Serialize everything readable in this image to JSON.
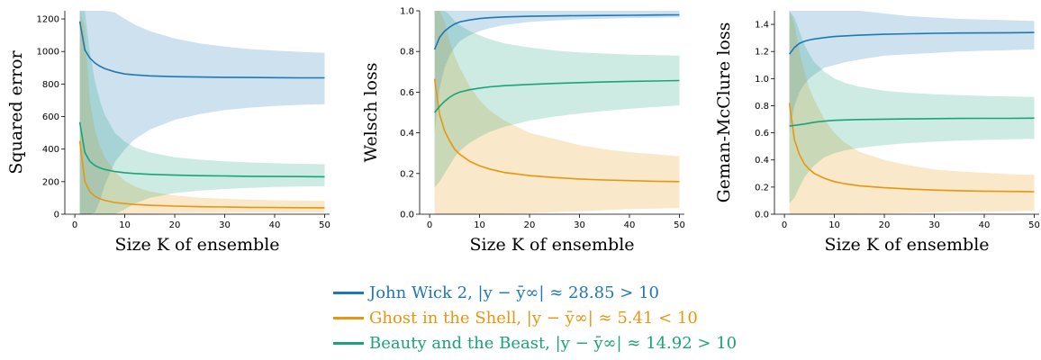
{
  "colors": {
    "john_wick": "#1f77b4",
    "ghost": "#e8960f",
    "beauty": "#1aa37a"
  },
  "chart_data": [
    {
      "type": "line",
      "xlabel": "Size K of ensemble",
      "ylabel": "Squared error",
      "xlim": [
        -2,
        51
      ],
      "ylim": [
        0,
        1250
      ],
      "xticks": [
        "0",
        "10",
        "20",
        "30",
        "40",
        "50"
      ],
      "yticks": [
        "0",
        "200",
        "400",
        "600",
        "800",
        "1000",
        "1200"
      ],
      "grid": false,
      "x": [
        1,
        2,
        3,
        4,
        5,
        6,
        8,
        10,
        12,
        15,
        20,
        25,
        30,
        35,
        40,
        45,
        50
      ],
      "series": [
        {
          "key": "john_wick",
          "values": [
            1185,
            1010,
            960,
            930,
            910,
            895,
            875,
            862,
            856,
            850,
            845,
            843,
            841,
            840,
            839,
            838,
            838
          ],
          "band_upper": [
            1250,
            1250,
            1250,
            1250,
            1250,
            1250,
            1240,
            1200,
            1165,
            1125,
            1080,
            1050,
            1030,
            1015,
            1005,
            998,
            992
          ],
          "band_lower": [
            0,
            0,
            0,
            10,
            80,
            180,
            320,
            400,
            460,
            520,
            580,
            615,
            640,
            655,
            665,
            672,
            676
          ]
        },
        {
          "key": "ghost",
          "values": [
            450,
            200,
            140,
            110,
            95,
            85,
            72,
            65,
            60,
            55,
            50,
            46,
            44,
            42,
            41,
            40,
            39
          ],
          "band_upper": [
            1250,
            1150,
            700,
            520,
            420,
            350,
            260,
            205,
            170,
            140,
            115,
            102,
            95,
            90,
            86,
            84,
            82
          ],
          "band_lower": [
            0,
            0,
            0,
            0,
            0,
            0,
            0,
            0,
            0,
            2,
            6,
            8,
            9,
            10,
            10,
            10,
            10
          ]
        },
        {
          "key": "beauty",
          "values": [
            565,
            380,
            325,
            300,
            285,
            275,
            262,
            255,
            250,
            245,
            240,
            237,
            235,
            233,
            232,
            231,
            230
          ],
          "band_upper": [
            1250,
            1250,
            1000,
            820,
            700,
            610,
            500,
            445,
            410,
            380,
            350,
            335,
            325,
            318,
            313,
            310,
            307
          ],
          "band_lower": [
            0,
            0,
            0,
            0,
            0,
            0,
            0,
            30,
            65,
            100,
            130,
            145,
            155,
            162,
            167,
            170,
            172
          ]
        }
      ]
    },
    {
      "type": "line",
      "xlabel": "Size K of ensemble",
      "ylabel": "Welsch loss",
      "xlim": [
        -2,
        51
      ],
      "ylim": [
        0,
        1.0
      ],
      "xticks": [
        "0",
        "10",
        "20",
        "30",
        "40",
        "50"
      ],
      "yticks": [
        "0.0",
        "0.2",
        "0.4",
        "0.6",
        "0.8",
        "1.0"
      ],
      "grid": false,
      "x": [
        1,
        2,
        3,
        4,
        5,
        6,
        8,
        10,
        12,
        15,
        20,
        25,
        30,
        35,
        40,
        45,
        50
      ],
      "series": [
        {
          "key": "john_wick",
          "values": [
            0.81,
            0.87,
            0.9,
            0.92,
            0.935,
            0.945,
            0.955,
            0.962,
            0.966,
            0.97,
            0.973,
            0.975,
            0.976,
            0.977,
            0.978,
            0.979,
            0.98
          ],
          "band_upper": [
            1.0,
            1.0,
            1.0,
            1.0,
            1.0,
            1.0,
            1.0,
            1.0,
            1.0,
            1.0,
            1.0,
            1.0,
            1.0,
            1.0,
            1.0,
            1.0,
            1.0
          ],
          "band_lower": [
            0.4,
            0.62,
            0.72,
            0.78,
            0.82,
            0.85,
            0.88,
            0.9,
            0.915,
            0.93,
            0.945,
            0.952,
            0.958,
            0.961,
            0.964,
            0.966,
            0.968
          ]
        },
        {
          "key": "ghost",
          "values": [
            0.665,
            0.49,
            0.41,
            0.36,
            0.32,
            0.295,
            0.26,
            0.238,
            0.222,
            0.205,
            0.19,
            0.18,
            0.173,
            0.168,
            0.165,
            0.162,
            0.16
          ],
          "band_upper": [
            1.0,
            1.0,
            0.95,
            0.85,
            0.78,
            0.72,
            0.63,
            0.56,
            0.51,
            0.46,
            0.4,
            0.37,
            0.34,
            0.32,
            0.305,
            0.295,
            0.285
          ],
          "band_lower": [
            0.0,
            0.0,
            0.0,
            0.0,
            0.0,
            0.0,
            0.0,
            0.0,
            0.0,
            0.0,
            0.005,
            0.01,
            0.015,
            0.02,
            0.025,
            0.028,
            0.03
          ]
        },
        {
          "key": "beauty",
          "values": [
            0.5,
            0.53,
            0.555,
            0.575,
            0.59,
            0.6,
            0.612,
            0.62,
            0.626,
            0.632,
            0.638,
            0.643,
            0.647,
            0.65,
            0.653,
            0.655,
            0.657
          ],
          "band_upper": [
            1.0,
            1.0,
            1.0,
            0.98,
            0.95,
            0.93,
            0.9,
            0.88,
            0.86,
            0.84,
            0.82,
            0.805,
            0.795,
            0.79,
            0.785,
            0.782,
            0.78
          ],
          "band_lower": [
            0.13,
            0.16,
            0.2,
            0.24,
            0.28,
            0.31,
            0.35,
            0.38,
            0.405,
            0.43,
            0.46,
            0.48,
            0.495,
            0.508,
            0.518,
            0.527,
            0.535
          ]
        }
      ]
    },
    {
      "type": "line",
      "xlabel": "Size K of ensemble",
      "ylabel": "Geman-McClure loss",
      "xlim": [
        -2,
        51
      ],
      "ylim": [
        0,
        1.5
      ],
      "xticks": [
        "0",
        "10",
        "20",
        "30",
        "40",
        "50"
      ],
      "yticks": [
        "0.0",
        "0.2",
        "0.4",
        "0.6",
        "0.8",
        "1.0",
        "1.2",
        "1.4"
      ],
      "grid": false,
      "x": [
        1,
        2,
        3,
        4,
        5,
        6,
        8,
        10,
        12,
        15,
        20,
        25,
        30,
        35,
        40,
        45,
        50
      ],
      "series": [
        {
          "key": "john_wick",
          "values": [
            1.18,
            1.23,
            1.26,
            1.275,
            1.285,
            1.292,
            1.302,
            1.31,
            1.315,
            1.32,
            1.327,
            1.331,
            1.334,
            1.336,
            1.337,
            1.338,
            1.34
          ],
          "band_upper": [
            1.5,
            1.5,
            1.5,
            1.5,
            1.5,
            1.5,
            1.5,
            1.5,
            1.5,
            1.5,
            1.48,
            1.46,
            1.45,
            1.44,
            1.435,
            1.43,
            1.425
          ],
          "band_lower": [
            0.6,
            0.8,
            0.9,
            0.96,
            1.0,
            1.03,
            1.08,
            1.1,
            1.12,
            1.14,
            1.17,
            1.18,
            1.19,
            1.2,
            1.205,
            1.21,
            1.215
          ]
        },
        {
          "key": "ghost",
          "values": [
            0.82,
            0.55,
            0.44,
            0.37,
            0.33,
            0.3,
            0.265,
            0.24,
            0.225,
            0.21,
            0.195,
            0.185,
            0.178,
            0.173,
            0.17,
            0.168,
            0.166
          ],
          "band_upper": [
            1.5,
            1.4,
            1.2,
            1.05,
            0.93,
            0.84,
            0.7,
            0.6,
            0.53,
            0.46,
            0.4,
            0.36,
            0.33,
            0.315,
            0.305,
            0.295,
            0.29
          ],
          "band_lower": [
            0.0,
            0.0,
            0.0,
            0.0,
            0.0,
            0.0,
            0.0,
            0.0,
            0.0,
            0.0,
            0.005,
            0.01,
            0.015,
            0.018,
            0.02,
            0.022,
            0.025
          ]
        },
        {
          "key": "beauty",
          "values": [
            0.65,
            0.655,
            0.66,
            0.665,
            0.672,
            0.678,
            0.686,
            0.692,
            0.695,
            0.698,
            0.701,
            0.703,
            0.705,
            0.706,
            0.707,
            0.707,
            0.708
          ],
          "band_upper": [
            1.5,
            1.45,
            1.35,
            1.25,
            1.18,
            1.12,
            1.05,
            1.0,
            0.97,
            0.94,
            0.91,
            0.895,
            0.885,
            0.878,
            0.872,
            0.868,
            0.865
          ],
          "band_lower": [
            0.08,
            0.12,
            0.2,
            0.27,
            0.32,
            0.36,
            0.42,
            0.45,
            0.47,
            0.49,
            0.51,
            0.525,
            0.535,
            0.542,
            0.548,
            0.552,
            0.556
          ]
        }
      ]
    }
  ],
  "legend": {
    "placement": "bottom-center",
    "entries": [
      {
        "key": "john_wick",
        "label": "John Wick 2, |y − ȳ∞| ≈ 28.85 > 10"
      },
      {
        "key": "ghost",
        "label": "Ghost in the Shell, |y − ȳ∞| ≈ 5.41 < 10"
      },
      {
        "key": "beauty",
        "label": "Beauty and the Beast, |y − ȳ∞| ≈ 14.92 > 10"
      }
    ]
  }
}
